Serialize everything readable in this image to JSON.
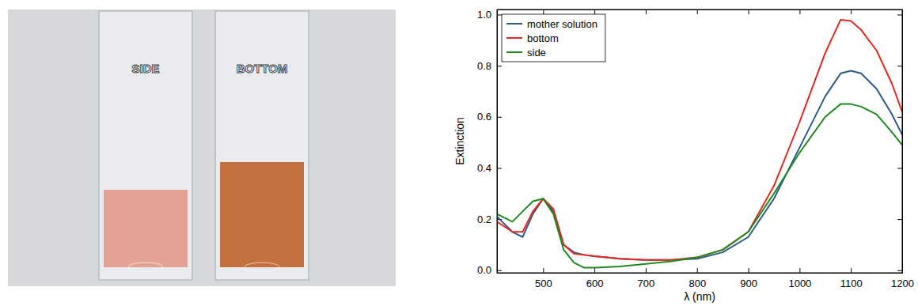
{
  "photo": {
    "labels": [
      "SIDE",
      "BOTTOM"
    ]
  },
  "chart_data": {
    "type": "line",
    "x_label": "λ (nm)",
    "y_label": "Extinction",
    "x": [
      410,
      440,
      460,
      480,
      500,
      520,
      540,
      560,
      580,
      600,
      650,
      700,
      750,
      800,
      850,
      900,
      950,
      1000,
      1050,
      1080,
      1100,
      1120,
      1150,
      1180,
      1200
    ],
    "series": [
      {
        "name": "mother solution",
        "color": "#2b5c8a",
        "values": [
          0.21,
          0.15,
          0.13,
          0.22,
          0.28,
          0.23,
          0.1,
          0.07,
          0.06,
          0.055,
          0.045,
          0.04,
          0.04,
          0.045,
          0.07,
          0.13,
          0.28,
          0.48,
          0.68,
          0.77,
          0.78,
          0.77,
          0.71,
          0.61,
          0.53
        ]
      },
      {
        "name": "bottom",
        "color": "#e8271c",
        "values": [
          0.19,
          0.15,
          0.15,
          0.23,
          0.28,
          0.24,
          0.1,
          0.065,
          0.06,
          0.055,
          0.045,
          0.04,
          0.04,
          0.05,
          0.08,
          0.15,
          0.33,
          0.58,
          0.85,
          0.98,
          0.975,
          0.94,
          0.86,
          0.73,
          0.62
        ]
      },
      {
        "name": "side",
        "color": "#1f8a1f",
        "values": [
          0.22,
          0.19,
          0.23,
          0.27,
          0.28,
          0.22,
          0.08,
          0.03,
          0.01,
          0.01,
          0.015,
          0.025,
          0.035,
          0.05,
          0.08,
          0.15,
          0.3,
          0.46,
          0.6,
          0.65,
          0.65,
          0.64,
          0.61,
          0.54,
          0.49
        ]
      }
    ],
    "xlim": [
      410,
      1200
    ],
    "ylim": [
      -0.01,
      1.02
    ],
    "xticks": [
      500,
      600,
      700,
      800,
      900,
      1000,
      1100,
      1200
    ],
    "yticks": [
      {
        "value": 0,
        "label": "0.0"
      },
      {
        "value": 0.2,
        "label": "0.2"
      },
      {
        "value": 0.4,
        "label": "0.4"
      },
      {
        "value": 0.6,
        "label": "0.6"
      },
      {
        "value": 0.8,
        "label": "0.8"
      },
      {
        "value": 1.0,
        "label": "1.0"
      }
    ],
    "legend": "upper left",
    "grid": false
  }
}
